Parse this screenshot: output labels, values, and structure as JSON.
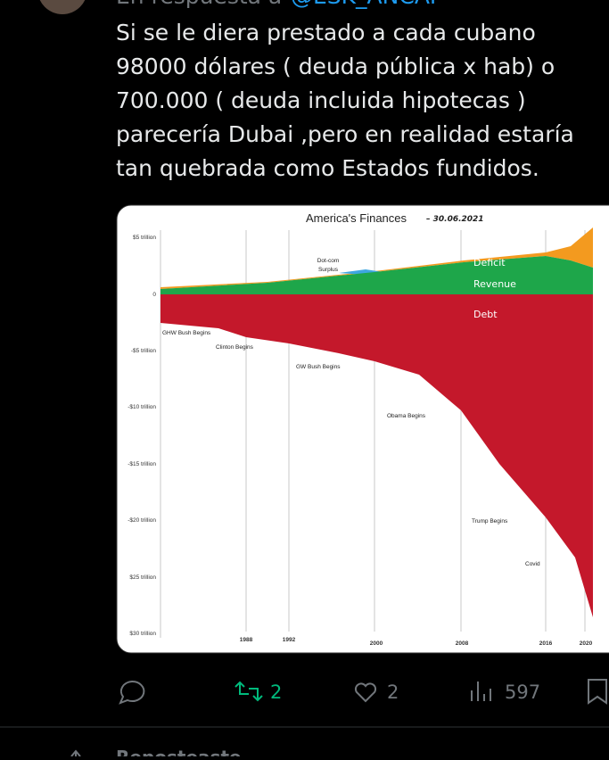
{
  "reply": {
    "prefix": "En respuesta a",
    "handle": "@ESK_ANCAP"
  },
  "tweet": {
    "lines": [
      "Si se le diera prestado a cada cubano",
      "98000 dólares ( deuda pública x hab) o",
      "700.000 ( deuda incluida hipotecas )",
      "parecería Dubai ,pero en realidad estaría",
      "tan quebrada como Estados fundidos."
    ]
  },
  "image": {
    "title": "America's Finances",
    "date": "– 30.06.2021",
    "y_labels": [
      "$5 trillion",
      "0",
      "-$5 trillion",
      "-$10 trillion",
      "-$15 trillion",
      "-$20 trillion",
      "$25 trillion",
      "$30 trillion"
    ],
    "x_labels": [
      "1988",
      "1992",
      "2000",
      "2008",
      "2016",
      "2020"
    ],
    "areas": [
      "Deficit",
      "Revenue",
      "Debt"
    ],
    "annotations": [
      "Dot-com",
      "Surplus",
      "GHW Bush Begins",
      "Clinton Begins",
      "GW Bush Begins",
      "Obama Begins",
      "Trump Begins",
      "Covid"
    ]
  },
  "actions": {
    "retweets": "2",
    "likes": "2",
    "views": "597"
  },
  "footer": {
    "text": "Reposteaste"
  }
}
